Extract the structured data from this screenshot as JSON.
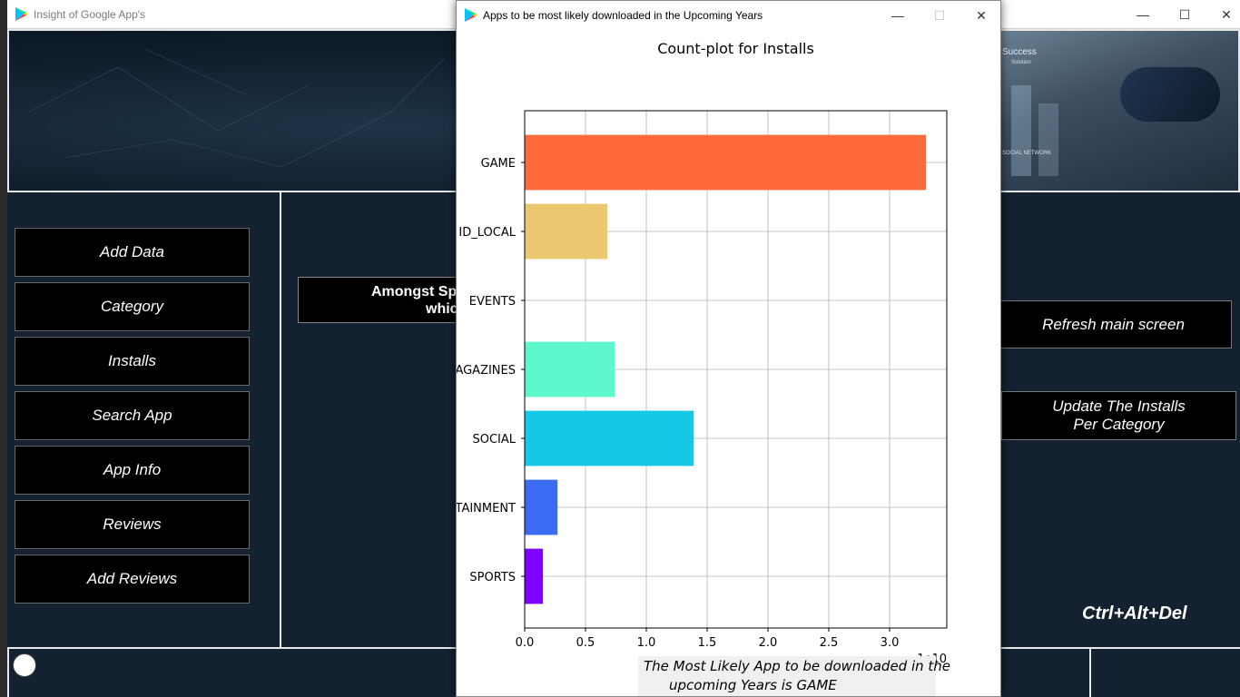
{
  "main_window": {
    "title": "Insight of Google App's",
    "controls": {
      "minimize": "—",
      "maximize": "☐",
      "close": "✕"
    },
    "banner_text": {
      "success": "Success",
      "solution": "Solution",
      "social": "SOCIAL NETWORK"
    },
    "nav_buttons": [
      "Add Data",
      "Category",
      "Installs",
      "Search App",
      "App Info",
      "Reviews",
      "Add Reviews"
    ],
    "question_lines": [
      "Amongst Sp",
      "whic"
    ],
    "refresh_button": "Refresh main screen",
    "update_button": "Update The Installs\nPer Category",
    "shortcut": "Ctrl+Alt+Del"
  },
  "plot_window": {
    "title": "Apps to be most likely downloaded in the Upcoming Years",
    "controls": {
      "minimize": "—",
      "maximize": "☐",
      "close": "✕"
    },
    "caption_lines": [
      "The Most Likely App to be downloaded in the",
      "upcoming Years is GAME"
    ],
    "partial_offset_label": "1e10"
  },
  "chart_data": {
    "type": "bar",
    "orientation": "horizontal",
    "title": "Count-plot for Installs",
    "categories": [
      "GAME",
      "ID_LOCAL",
      "EVENTS",
      "AGAZINES",
      "SOCIAL",
      "TAINMENT",
      "SPORTS"
    ],
    "values": [
      3.3,
      0.68,
      0.0,
      0.74,
      1.39,
      0.27,
      0.15
    ],
    "colors": [
      "#ff6b3a",
      "#ecc870",
      "#a6e88f",
      "#5cf8cb",
      "#14c8e6",
      "#3a6cf4",
      "#7f00ff"
    ],
    "xlim": [
      0,
      3.47
    ],
    "xticks": [
      "0.0",
      "0.5",
      "1.0",
      "1.5",
      "2.0",
      "2.5",
      "3.0"
    ],
    "xtick_values": [
      0,
      0.5,
      1.0,
      1.5,
      2.0,
      2.5,
      3.0
    ],
    "grid": true
  }
}
